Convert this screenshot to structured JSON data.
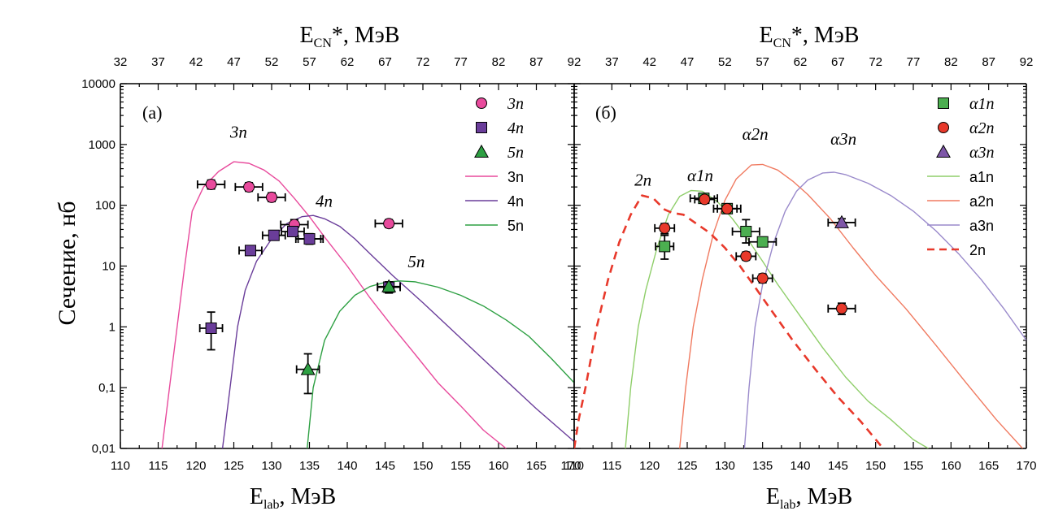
{
  "ylabel": "Сечение, нб",
  "xlabel_bottom": {
    "main": "E",
    "sub": "lab",
    "unit": ", МэВ"
  },
  "xlabel_top": {
    "main": "E",
    "sub": "CN",
    "unit": "*, МэВ"
  },
  "y_tick_labels": [
    "0,01",
    "0,1",
    "1",
    "10",
    "100",
    "1000",
    "10000"
  ],
  "chart_data": [
    {
      "type": "scatter",
      "panel_label": "(a)",
      "x_lim": [
        110,
        170
      ],
      "y_lim": [
        0.01,
        10000
      ],
      "y_scale": "log",
      "x_ticks": [
        110,
        115,
        120,
        125,
        130,
        135,
        140,
        145,
        150,
        155,
        160,
        165
      ],
      "x_tick_labels": [
        "110",
        "115",
        "120",
        "125",
        "130",
        "135",
        "140",
        "145",
        "150",
        "155",
        "160",
        "165"
      ],
      "x_right_edge_label": "170",
      "top_ticks": [
        "32",
        "37",
        "42",
        "47",
        "52",
        "57",
        "62",
        "67",
        "72",
        "77",
        "82",
        "87",
        "92"
      ],
      "legend_position": "top-right",
      "points": [
        {
          "name": "3n",
          "marker": "circle",
          "color": "#e84a9c",
          "data": [
            {
              "x": 122,
              "y": 220,
              "xerr": 1.8,
              "yerr_lo": 185,
              "yerr_hi": 260
            },
            {
              "x": 127,
              "y": 200,
              "xerr": 1.8,
              "yerr_lo": 170,
              "yerr_hi": 235
            },
            {
              "x": 130,
              "y": 135,
              "xerr": 1.8,
              "yerr_lo": 115,
              "yerr_hi": 160
            },
            {
              "x": 133,
              "y": 48,
              "xerr": 1.8,
              "yerr_lo": 38,
              "yerr_hi": 58
            },
            {
              "x": 135,
              "y": 28,
              "xerr": 1.8,
              "yerr_lo": 23,
              "yerr_hi": 33
            },
            {
              "x": 145.5,
              "y": 50,
              "xerr": 1.8,
              "yerr_lo": 43,
              "yerr_hi": 58
            }
          ]
        },
        {
          "name": "4n",
          "marker": "square",
          "color": "#6a3d9a",
          "data": [
            {
              "x": 122,
              "y": 0.95,
              "xerr": 1.5,
              "yerr_lo": 0.42,
              "yerr_hi": 1.75
            },
            {
              "x": 127.2,
              "y": 18,
              "xerr": 1.5,
              "yerr_lo": 15.5,
              "yerr_hi": 21
            },
            {
              "x": 130.3,
              "y": 32,
              "xerr": 1.5,
              "yerr_lo": 28,
              "yerr_hi": 37
            },
            {
              "x": 132.8,
              "y": 37,
              "xerr": 1.5,
              "yerr_lo": 32,
              "yerr_hi": 43
            },
            {
              "x": 135,
              "y": 28,
              "xerr": 1.5,
              "yerr_lo": 23,
              "yerr_hi": 34
            },
            {
              "x": 145.5,
              "y": 4.5,
              "xerr": 1.5,
              "yerr_lo": 3.8,
              "yerr_hi": 5.3
            }
          ]
        },
        {
          "name": "5n",
          "marker": "triangle",
          "color": "#2ea043",
          "data": [
            {
              "x": 134.8,
              "y": 0.2,
              "xerr": 1.5,
              "yerr_lo": 0.08,
              "yerr_hi": 0.36
            },
            {
              "x": 145.5,
              "y": 4.6,
              "xerr": 1.5,
              "yerr_lo": 3.6,
              "yerr_hi": 5.5
            }
          ]
        }
      ],
      "curves": [
        {
          "name": "3n",
          "color": "#e84a9c",
          "dash": false,
          "points": [
            [
              115.5,
              0.01
            ],
            [
              116.5,
              0.1
            ],
            [
              117.5,
              1
            ],
            [
              118.5,
              10
            ],
            [
              119.5,
              80
            ],
            [
              121,
              200
            ],
            [
              123,
              360
            ],
            [
              125,
              520
            ],
            [
              127,
              490
            ],
            [
              129,
              380
            ],
            [
              131,
              250
            ],
            [
              133,
              130
            ],
            [
              135,
              65
            ],
            [
              137,
              30
            ],
            [
              140,
              10
            ],
            [
              143,
              3
            ],
            [
              146,
              1
            ],
            [
              149,
              0.35
            ],
            [
              152,
              0.12
            ],
            [
              155,
              0.05
            ],
            [
              158,
              0.02
            ],
            [
              161,
              0.01
            ]
          ]
        },
        {
          "name": "4n",
          "color": "#6a3d9a",
          "dash": false,
          "points": [
            [
              123.5,
              0.01
            ],
            [
              124.5,
              0.1
            ],
            [
              125.5,
              1
            ],
            [
              126.5,
              4
            ],
            [
              128,
              12
            ],
            [
              130,
              28
            ],
            [
              132,
              50
            ],
            [
              134,
              65
            ],
            [
              135.5,
              68
            ],
            [
              137,
              60
            ],
            [
              139,
              45
            ],
            [
              141,
              28
            ],
            [
              143,
              16
            ],
            [
              146,
              7
            ],
            [
              150,
              2.5
            ],
            [
              155,
              0.65
            ],
            [
              160,
              0.17
            ],
            [
              165,
              0.045
            ],
            [
              170,
              0.013
            ]
          ]
        },
        {
          "name": "5n",
          "color": "#2ea043",
          "dash": false,
          "points": [
            [
              134.7,
              0.01
            ],
            [
              135.5,
              0.1
            ],
            [
              137,
              0.6
            ],
            [
              139,
              1.8
            ],
            [
              141,
              3.3
            ],
            [
              143,
              4.6
            ],
            [
              145,
              5.4
            ],
            [
              147,
              5.7
            ],
            [
              149,
              5.5
            ],
            [
              152,
              4.5
            ],
            [
              155,
              3.3
            ],
            [
              158,
              2.2
            ],
            [
              161,
              1.3
            ],
            [
              164,
              0.7
            ],
            [
              167,
              0.3
            ],
            [
              170,
              0.12
            ]
          ]
        }
      ],
      "annotations": [
        {
          "text": "3n",
          "x": 124.5,
          "y": 1300
        },
        {
          "text": "4n",
          "x": 135.8,
          "y": 95
        },
        {
          "text": "5n",
          "x": 148,
          "y": 9.5
        }
      ],
      "legend": [
        {
          "label": "3n",
          "kind": "circle",
          "color": "#e84a9c",
          "italic": true
        },
        {
          "label": "4n",
          "kind": "square",
          "color": "#6a3d9a",
          "italic": true
        },
        {
          "label": "5n",
          "kind": "triangle",
          "color": "#2ea043",
          "italic": true
        },
        {
          "label": "3n",
          "kind": "line",
          "color": "#e84a9c",
          "italic": false
        },
        {
          "label": "4n",
          "kind": "line",
          "color": "#6a3d9a",
          "italic": false
        },
        {
          "label": "5n",
          "kind": "line",
          "color": "#2ea043",
          "italic": false
        }
      ]
    },
    {
      "type": "scatter",
      "panel_label": "(б)",
      "x_lim": [
        110,
        170
      ],
      "y_lim": [
        0.01,
        10000
      ],
      "y_scale": "log",
      "x_ticks": [
        110,
        115,
        120,
        125,
        130,
        135,
        140,
        145,
        150,
        155,
        160,
        165,
        170
      ],
      "x_tick_labels": [
        "110",
        "115",
        "120",
        "125",
        "130",
        "135",
        "140",
        "145",
        "150",
        "155",
        "160",
        "165",
        "170"
      ],
      "x_left_edge_label": "110",
      "top_ticks": [
        "37",
        "42",
        "47",
        "52",
        "57",
        "62",
        "67",
        "72",
        "77",
        "82",
        "87",
        "92"
      ],
      "legend_position": "top-right",
      "points": [
        {
          "name": "α1n",
          "marker": "square",
          "color": "#4caf50",
          "data": [
            {
              "x": 122,
              "y": 21,
              "xerr": 1.2,
              "yerr_lo": 13,
              "yerr_hi": 32
            },
            {
              "x": 127.2,
              "y": 130,
              "xerr": 1.8,
              "yerr_lo": 110,
              "yerr_hi": 150
            },
            {
              "x": 130.3,
              "y": 88,
              "xerr": 1.8,
              "yerr_lo": 75,
              "yerr_hi": 103
            },
            {
              "x": 132.8,
              "y": 37,
              "xerr": 1.8,
              "yerr_lo": 24,
              "yerr_hi": 58
            },
            {
              "x": 135,
              "y": 25,
              "xerr": 1.8,
              "yerr_lo": 21,
              "yerr_hi": 30
            }
          ]
        },
        {
          "name": "α2n",
          "marker": "circle",
          "color": "#e8392b",
          "data": [
            {
              "x": 122,
              "y": 42,
              "xerr": 1.3,
              "yerr_lo": 34,
              "yerr_hi": 50
            },
            {
              "x": 127.3,
              "y": 125,
              "xerr": 1.3,
              "yerr_lo": 110,
              "yerr_hi": 142
            },
            {
              "x": 130.3,
              "y": 88,
              "xerr": 1.3,
              "yerr_lo": 76,
              "yerr_hi": 100
            },
            {
              "x": 132.8,
              "y": 14.5,
              "xerr": 1.3,
              "yerr_lo": 12.5,
              "yerr_hi": 17
            },
            {
              "x": 135,
              "y": 6.3,
              "xerr": 1.3,
              "yerr_lo": 5.3,
              "yerr_hi": 7.4
            },
            {
              "x": 145.5,
              "y": 2,
              "xerr": 1.8,
              "yerr_lo": 1.6,
              "yerr_hi": 2.45
            }
          ]
        },
        {
          "name": "α3n",
          "marker": "triangle",
          "color": "#7e57a8",
          "data": [
            {
              "x": 145.5,
              "y": 52,
              "xerr": 1.8,
              "yerr_lo": 45,
              "yerr_hi": 60
            }
          ]
        }
      ],
      "curves": [
        {
          "name": "a1n",
          "color": "#8fce6a",
          "dash": false,
          "points": [
            [
              116.8,
              0.01
            ],
            [
              117.5,
              0.1
            ],
            [
              118.5,
              1
            ],
            [
              119.5,
              4
            ],
            [
              121,
              20
            ],
            [
              122.5,
              70
            ],
            [
              124,
              140
            ],
            [
              125.5,
              175
            ],
            [
              127,
              170
            ],
            [
              129,
              115
            ],
            [
              131,
              60
            ],
            [
              133,
              28
            ],
            [
              135,
              12
            ],
            [
              137,
              5
            ],
            [
              140,
              1.5
            ],
            [
              143,
              0.45
            ],
            [
              146,
              0.15
            ],
            [
              149,
              0.06
            ],
            [
              152,
              0.03
            ],
            [
              155,
              0.014
            ],
            [
              157,
              0.01
            ]
          ]
        },
        {
          "name": "a2n",
          "color": "#f07a60",
          "dash": false,
          "points": [
            [
              124,
              0.01
            ],
            [
              124.8,
              0.1
            ],
            [
              125.8,
              1
            ],
            [
              127,
              6
            ],
            [
              128.5,
              35
            ],
            [
              130,
              120
            ],
            [
              131.5,
              270
            ],
            [
              133.5,
              460
            ],
            [
              135,
              470
            ],
            [
              137,
              380
            ],
            [
              139,
              250
            ],
            [
              141,
              150
            ],
            [
              144,
              60
            ],
            [
              147,
              20
            ],
            [
              150,
              7
            ],
            [
              154,
              2
            ],
            [
              158,
              0.5
            ],
            [
              162,
              0.12
            ],
            [
              166,
              0.03
            ],
            [
              169.5,
              0.01
            ]
          ]
        },
        {
          "name": "a3n",
          "color": "#9a8acb",
          "dash": false,
          "points": [
            [
              132.6,
              0.01
            ],
            [
              133.2,
              0.1
            ],
            [
              134,
              1
            ],
            [
              135,
              5
            ],
            [
              136.5,
              25
            ],
            [
              138,
              80
            ],
            [
              139.5,
              170
            ],
            [
              141,
              260
            ],
            [
              143,
              340
            ],
            [
              144.5,
              350
            ],
            [
              146,
              320
            ],
            [
              149,
              230
            ],
            [
              152,
              145
            ],
            [
              155,
              80
            ],
            [
              158,
              38
            ],
            [
              161,
              16
            ],
            [
              164,
              6
            ],
            [
              167,
              2
            ],
            [
              170,
              0.6
            ]
          ]
        },
        {
          "name": "2n",
          "color": "#e8392b",
          "dash": true,
          "points": [
            [
              110,
              0.01
            ],
            [
              110.6,
              0.03
            ],
            [
              111.5,
              0.1
            ],
            [
              113,
              1
            ],
            [
              114.5,
              6
            ],
            [
              116,
              25
            ],
            [
              117.5,
              70
            ],
            [
              119,
              145
            ],
            [
              120.5,
              130
            ],
            [
              122,
              85
            ],
            [
              123,
              75
            ],
            [
              124.5,
              70
            ],
            [
              126,
              52
            ],
            [
              128,
              35
            ],
            [
              130,
              20
            ],
            [
              132,
              10
            ],
            [
              134,
              4.5
            ],
            [
              136,
              2
            ],
            [
              139,
              0.6
            ],
            [
              142,
              0.2
            ],
            [
              145,
              0.07
            ],
            [
              148,
              0.028
            ],
            [
              151,
              0.01
            ]
          ]
        }
      ],
      "annotations": [
        {
          "text": "2n",
          "x": 118,
          "y": 210
        },
        {
          "text": "α1n",
          "x": 125,
          "y": 250
        },
        {
          "text": "α2n",
          "x": 132.3,
          "y": 1200
        },
        {
          "text": "α3n",
          "x": 144,
          "y": 1000
        }
      ],
      "legend": [
        {
          "label": "α1n",
          "kind": "square",
          "color": "#4caf50",
          "italic": true
        },
        {
          "label": "α2n",
          "kind": "circle",
          "color": "#e8392b",
          "italic": true
        },
        {
          "label": "α3n",
          "kind": "triangle",
          "color": "#7e57a8",
          "italic": true
        },
        {
          "label": "a1n",
          "kind": "line",
          "color": "#8fce6a",
          "italic": false
        },
        {
          "label": "a2n",
          "kind": "line",
          "color": "#f07a60",
          "italic": false
        },
        {
          "label": "a3n",
          "kind": "line",
          "color": "#9a8acb",
          "italic": false
        },
        {
          "label": "2n",
          "kind": "dash",
          "color": "#e8392b",
          "italic": false
        }
      ]
    }
  ]
}
